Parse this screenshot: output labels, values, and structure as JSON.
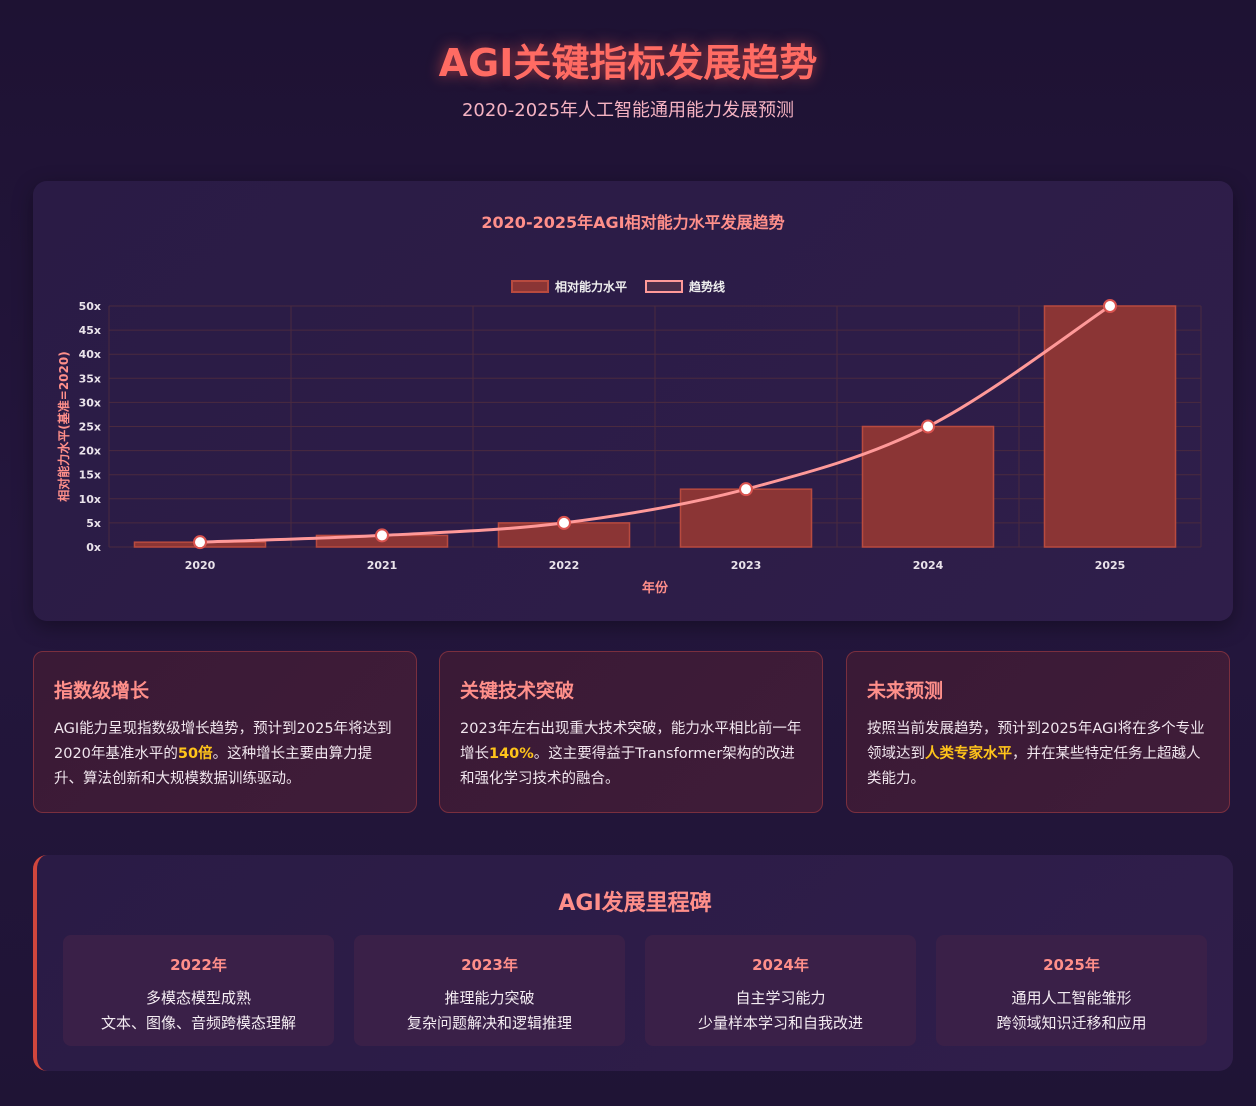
{
  "header": {
    "title": "AGI关键指标发展趋势",
    "subtitle": "2020-2025年人工智能通用能力发展预测"
  },
  "chart_data": {
    "type": "bar",
    "title": "2020-2025年AGI相对能力水平发展趋势",
    "xlabel": "年份",
    "ylabel": "相对能力水平(基准=2020)",
    "categories": [
      "2020",
      "2021",
      "2022",
      "2023",
      "2024",
      "2025"
    ],
    "series": [
      {
        "name": "相对能力水平",
        "kind": "bar",
        "values": [
          1,
          2.4,
          5,
          12,
          25,
          50
        ],
        "color": "#8b3535"
      },
      {
        "name": "趋势线",
        "kind": "line",
        "values": [
          1,
          2.4,
          5,
          12,
          25,
          50
        ],
        "color": "#ff9999"
      }
    ],
    "ylim": [
      0,
      50
    ],
    "yticks": [
      0,
      5,
      10,
      15,
      20,
      25,
      30,
      35,
      40,
      45,
      50
    ],
    "ytick_suffix": "x",
    "grid": true,
    "legend": "top-center"
  },
  "cards": [
    {
      "title": "指数级增长",
      "text_before": "AGI能力呈现指数级增长趋势，预计到2025年将达到2020年基准水平的",
      "highlight": "50倍",
      "text_after": "。这种增长主要由算力提升、算法创新和大规模数据训练驱动。"
    },
    {
      "title": "关键技术突破",
      "text_before": "2023年左右出现重大技术突破，能力水平相比前一年增长",
      "highlight": "140%",
      "text_after": "。这主要得益于Transformer架构的改进和强化学习技术的融合。"
    },
    {
      "title": "未来预测",
      "text_before": "按照当前发展趋势，预计到2025年AGI将在多个专业领域达到",
      "highlight": "人类专家水平",
      "text_after": "，并在某些特定任务上超越人类能力。"
    }
  ],
  "milestones": {
    "title": "AGI发展里程碑",
    "items": [
      {
        "year": "2022年",
        "name": "多模态模型成熟",
        "desc": "文本、图像、音频跨模态理解"
      },
      {
        "year": "2023年",
        "name": "推理能力突破",
        "desc": "复杂问题解决和逻辑推理"
      },
      {
        "year": "2024年",
        "name": "自主学习能力",
        "desc": "少量样本学习和自我改进"
      },
      {
        "year": "2025年",
        "name": "通用人工智能雏形",
        "desc": "跨领域知识迁移和应用"
      }
    ]
  },
  "colors": {
    "accent": "#ff6b63",
    "highlight": "#ffc41a",
    "bar": "#8b3535",
    "trend": "#ff9999"
  }
}
